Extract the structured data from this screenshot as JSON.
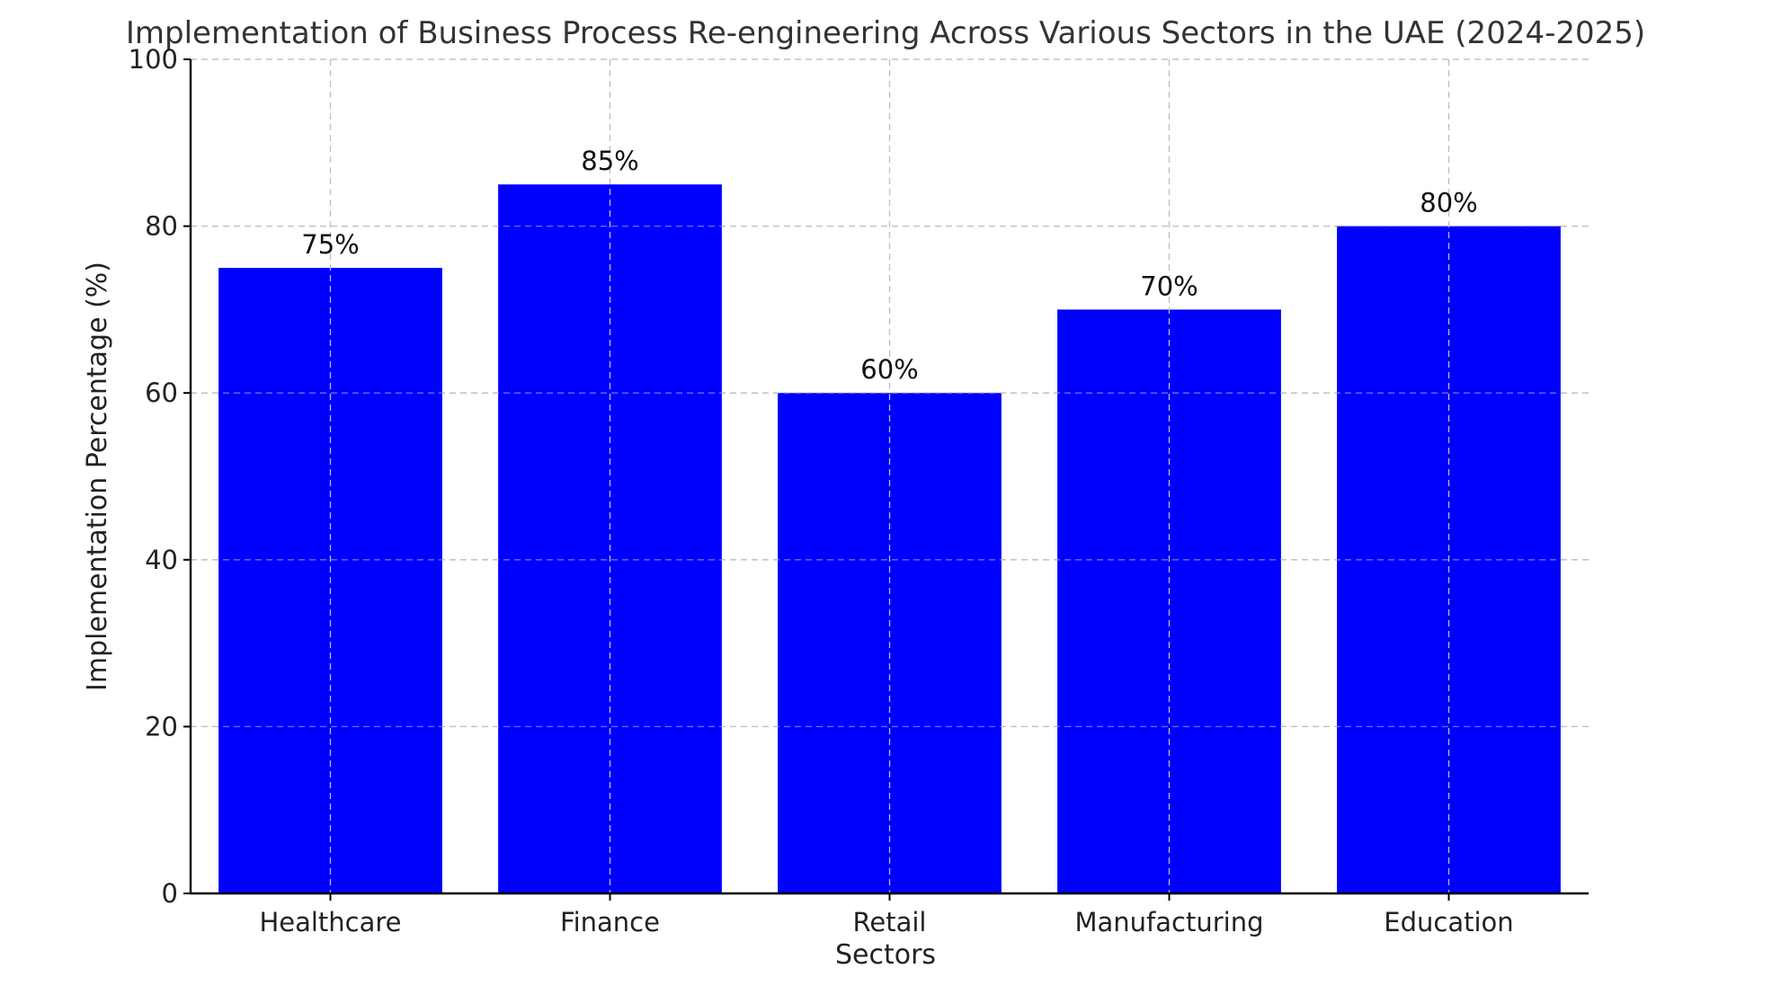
{
  "chart_data": {
    "type": "bar",
    "title": "Implementation of Business Process Re-engineering Across Various Sectors in the UAE (2024-2025)",
    "xlabel": "Sectors",
    "ylabel": "Implementation Percentage (%)",
    "categories": [
      "Healthcare",
      "Finance",
      "Retail",
      "Manufacturing",
      "Education"
    ],
    "values": [
      75,
      85,
      60,
      70,
      80
    ],
    "data_labels": [
      "75%",
      "85%",
      "60%",
      "70%",
      "80%"
    ],
    "ylim": [
      0,
      100
    ],
    "yticks": [
      0,
      20,
      40,
      60,
      80,
      100
    ],
    "ytick_labels": [
      "0",
      "20",
      "40",
      "60",
      "80",
      "100"
    ],
    "grid": true,
    "legend": "none",
    "bar_color": "#0000ff"
  }
}
